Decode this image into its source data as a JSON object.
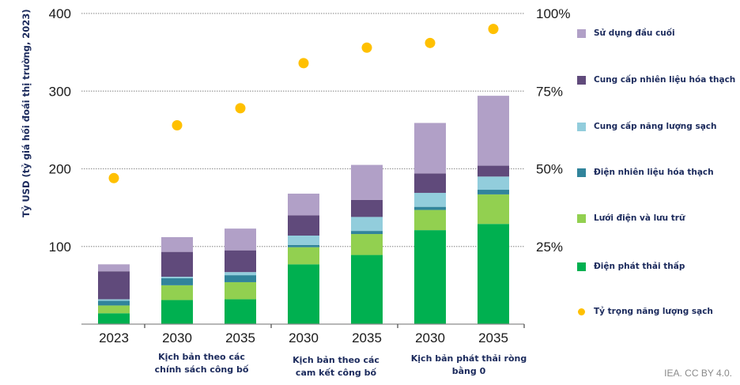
{
  "chart_data": {
    "type": "bar",
    "stacked": true,
    "title": "",
    "ylabel": "Tỷ USD (tỷ giá hối đoái thị trường, 2023)",
    "y2label": "",
    "ylim": [
      0,
      400
    ],
    "y2lim": [
      0,
      100
    ],
    "yticks": [
      "100",
      "200",
      "300",
      "400"
    ],
    "y2ticks": [
      "25%",
      "50%",
      "75%",
      "100%"
    ],
    "grid": true,
    "legend_position": "right",
    "categories": [
      "2023",
      "2030",
      "2035",
      "2030",
      "2035",
      "2030",
      "2035"
    ],
    "groups": [
      {
        "label": "",
        "categories": [
          "2023"
        ]
      },
      {
        "label": "Kịch bản theo các chính sách công bố",
        "categories": [
          "2030",
          "2035"
        ]
      },
      {
        "label": "Kịch bản theo các cam kết công bố",
        "categories": [
          "2030",
          "2035"
        ]
      },
      {
        "label": "Kịch bản phát thải ròng bằng 0",
        "categories": [
          "2030",
          "2035"
        ]
      }
    ],
    "group_labels_display": [
      {
        "line1": "Kịch bản theo các",
        "line2": "chính sách công bố"
      },
      {
        "line1": "Kịch bản theo các",
        "line2": "cam kết công bố"
      },
      {
        "line1": "Kịch bản phát thải ròng",
        "line2": "bằng 0"
      }
    ],
    "series": [
      {
        "name": "Điện phát thải thấp",
        "color": "#00b050",
        "values": [
          14,
          31,
          32,
          77,
          89,
          121,
          129
        ]
      },
      {
        "name": "Lưới điện và lưu trữ",
        "color": "#92d050",
        "values": [
          10,
          19,
          22,
          22,
          27,
          26,
          38
        ]
      },
      {
        "name": "Điện nhiên liệu hóa thạch",
        "color": "#31849b",
        "values": [
          6,
          9,
          9,
          3,
          4,
          4,
          6
        ]
      },
      {
        "name": "Cung cấp năng lượng sạch",
        "color": "#92cddc",
        "values": [
          2,
          2,
          4,
          12,
          18,
          18,
          17
        ]
      },
      {
        "name": "Cung cấp nhiên liệu hóa thạch",
        "color": "#604a7b",
        "values": [
          36,
          32,
          28,
          26,
          22,
          25,
          14
        ]
      },
      {
        "name": "Sử dụng đầu cuối",
        "color": "#b1a0c7",
        "values": [
          9,
          19,
          28,
          28,
          45,
          65,
          90
        ]
      }
    ],
    "line_series": {
      "name": "Tỷ trọng năng lượng sạch",
      "color": "#ffc000",
      "axis": "right",
      "unit": "%",
      "values": [
        47,
        64,
        69.5,
        84,
        89,
        90.5,
        95
      ]
    }
  },
  "legend": {
    "items": [
      {
        "label": "Sử dụng đầu cuối",
        "color": "#b1a0c7",
        "shape": "square"
      },
      {
        "label": "Cung cấp nhiên liệu hóa thạch",
        "color": "#604a7b",
        "shape": "square"
      },
      {
        "label": "Cung cấp năng lượng sạch",
        "color": "#92cddc",
        "shape": "square"
      },
      {
        "label": "Điện nhiên liệu hóa thạch",
        "color": "#31849b",
        "shape": "square"
      },
      {
        "label": "Lưới điện và lưu trữ",
        "color": "#92d050",
        "shape": "square"
      },
      {
        "label": "Điện phát thải thấp",
        "color": "#00b050",
        "shape": "square"
      },
      {
        "label": "Tỷ trọng năng lượng sạch",
        "color": "#ffc000",
        "shape": "dot"
      }
    ]
  },
  "source": "IEA. CC BY 4.0."
}
